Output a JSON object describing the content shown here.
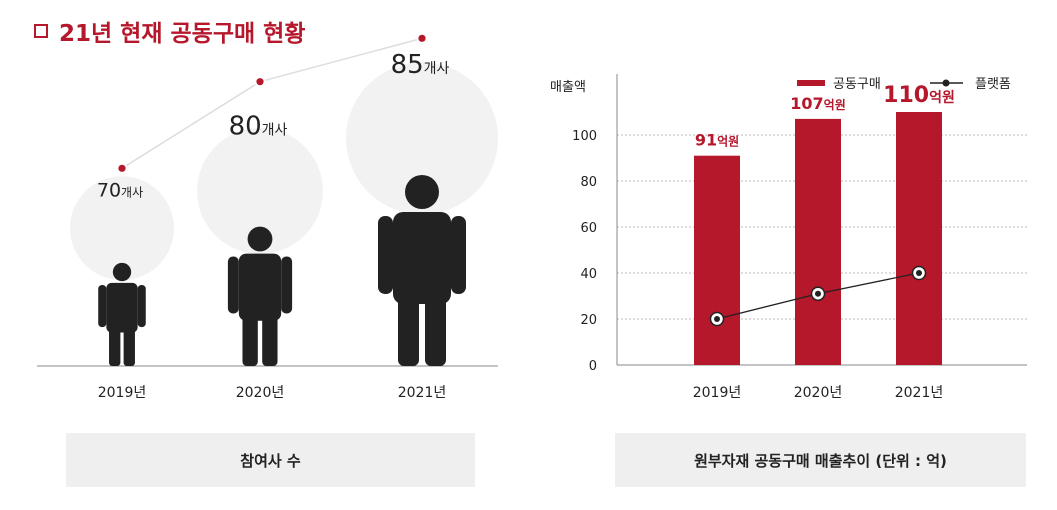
{
  "title": "21년 현재 공동구매 현황",
  "left_chart": {
    "caption": "참여사 수",
    "unit": "개사"
  },
  "right_chart": {
    "caption": "원부자재 공동구매 매출추이 (단위 : 억)",
    "bar_unit": "억원"
  },
  "chart_data": [
    {
      "type": "line",
      "categories": [
        "2019년",
        "2020년",
        "2021년"
      ],
      "values": [
        70,
        80,
        85
      ],
      "value_labels": [
        "70",
        "80",
        "85"
      ],
      "unit_label": "개사",
      "title": "",
      "xlabel": "",
      "ylabel": "",
      "colors": {
        "line": "#dddddd",
        "marker": "#b5172b",
        "figure": "#222222",
        "bubble": "#f2f2f2"
      }
    },
    {
      "type": "bar",
      "categories": [
        "2019년",
        "2020년",
        "2021년"
      ],
      "series": [
        {
          "name": "공동구매",
          "values": [
            91,
            107,
            110
          ],
          "data_labels": [
            "91",
            "107",
            "110"
          ],
          "color": "#b5172b"
        },
        {
          "name": "플랫폼",
          "type": "line",
          "values": [
            20,
            31,
            40
          ],
          "color": "#222222"
        }
      ],
      "bar_label_unit": "억원",
      "yticks": [
        "0",
        "20",
        "40",
        "60",
        "80",
        "100"
      ],
      "ylim": [
        0,
        120
      ],
      "ylabel": "매출액",
      "title": "",
      "xlabel": "",
      "grid": true,
      "legend_position": "top-right"
    }
  ]
}
